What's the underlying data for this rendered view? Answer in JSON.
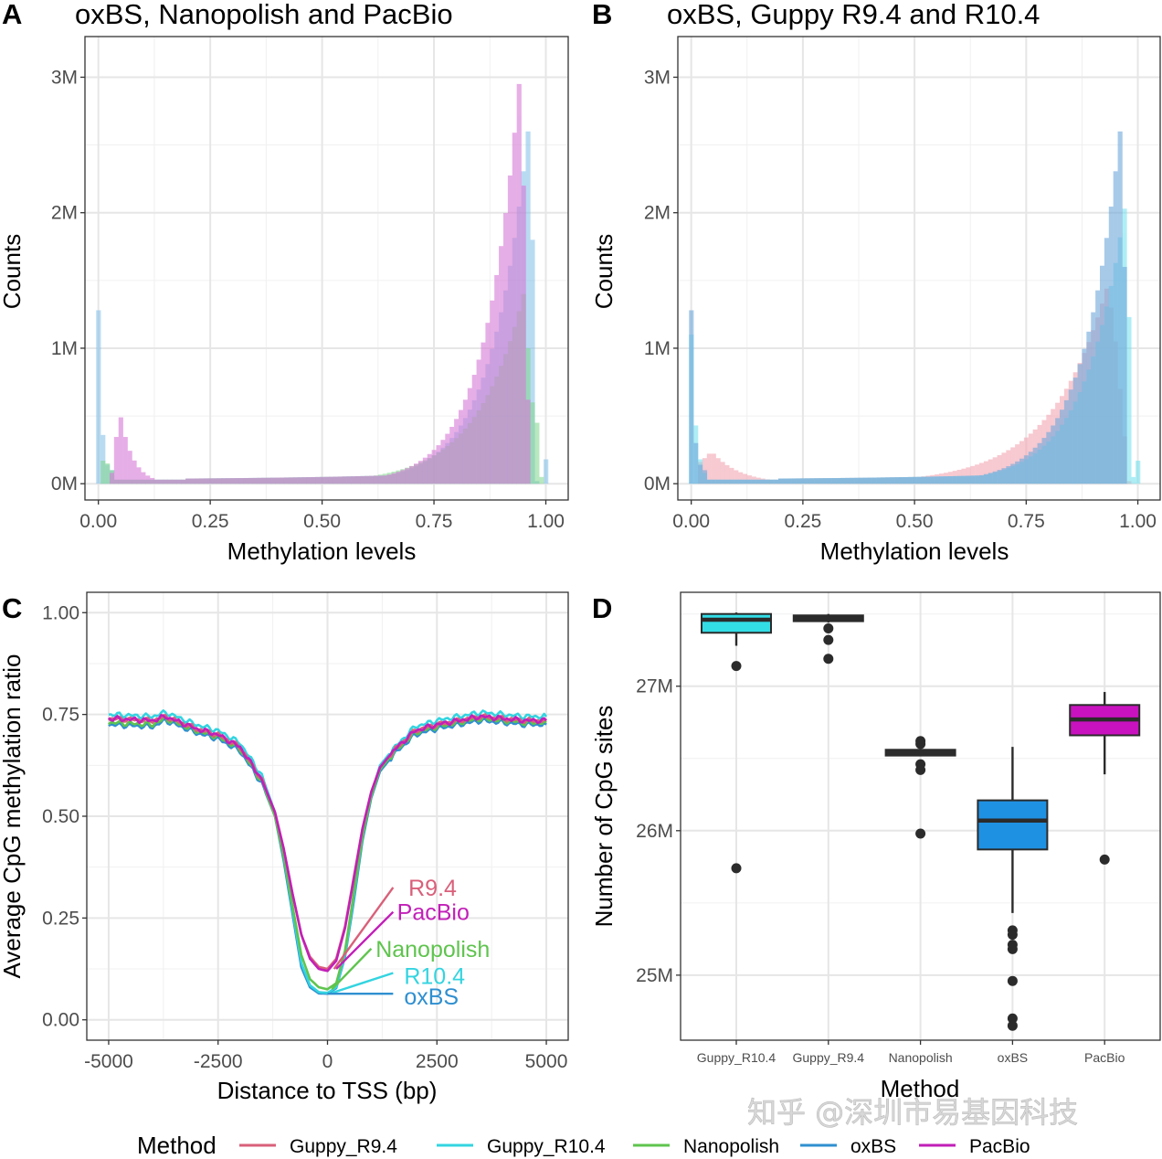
{
  "figure": {
    "watermark": "知乎 @深圳市易基因科技",
    "legend": {
      "title": "Method",
      "items": [
        {
          "label": "Guppy_R9.4",
          "color": "#d9607a"
        },
        {
          "label": "Guppy_R10.4",
          "color": "#33d4e0"
        },
        {
          "label": "Nanopolish",
          "color": "#5fc44e"
        },
        {
          "label": "oxBS",
          "color": "#2f8fd0"
        },
        {
          "label": "PacBio",
          "color": "#c21fb8"
        }
      ]
    }
  },
  "chart_data": [
    {
      "id": "A",
      "letter": "A",
      "type": "bar",
      "subtype": "overlaid-histogram",
      "title": "oxBS, Nanopolish and PacBio",
      "xlabel": "Methylation levels",
      "ylabel": "Counts",
      "xlim": [
        -0.03,
        1.05
      ],
      "ylim": [
        -0.12,
        3.3
      ],
      "y_unit": "M",
      "xticks": [
        0,
        0.25,
        0.5,
        0.75,
        1.0
      ],
      "xtick_labels": [
        "0.00",
        "0.25",
        "0.50",
        "0.75",
        "1.00"
      ],
      "yticks": [
        0,
        1,
        2,
        3
      ],
      "ytick_labels": [
        "0M",
        "1M",
        "2M",
        "3M"
      ],
      "grid": true,
      "bin_width": 0.01,
      "series": [
        {
          "name": "oxBS",
          "color": "#7fbfe8",
          "opacity": 0.55,
          "peaks": [
            {
              "x": 0.0,
              "y": 1.28
            },
            {
              "x": 0.01,
              "y": 0.36
            },
            {
              "x": 0.96,
              "y": 2.6
            },
            {
              "x": 0.97,
              "y": 1.8
            },
            {
              "x": 1.0,
              "y": 0.18
            }
          ]
        },
        {
          "name": "Nanopolish",
          "color": "#7fd68c",
          "opacity": 0.55,
          "peaks": [
            {
              "x": 0.01,
              "y": 0.17
            },
            {
              "x": 0.95,
              "y": 1.35
            },
            {
              "x": 0.96,
              "y": 1.0
            },
            {
              "x": 0.98,
              "y": 0.45
            }
          ]
        },
        {
          "name": "PacBio",
          "color": "#d77ad6",
          "opacity": 0.6,
          "peaks": [
            {
              "x": 0.05,
              "y": 0.49
            },
            {
              "x": 0.94,
              "y": 2.95
            },
            {
              "x": 0.96,
              "y": 0.62
            }
          ]
        }
      ]
    },
    {
      "id": "B",
      "letter": "B",
      "type": "bar",
      "subtype": "overlaid-histogram",
      "title": "oxBS, Guppy R9.4 and R10.4",
      "xlabel": "Methylation levels",
      "ylabel": "Counts",
      "xlim": [
        -0.03,
        1.05
      ],
      "ylim": [
        -0.12,
        3.3
      ],
      "y_unit": "M",
      "xticks": [
        0,
        0.25,
        0.5,
        0.75,
        1.0
      ],
      "xtick_labels": [
        "0.00",
        "0.25",
        "0.50",
        "0.75",
        "1.00"
      ],
      "yticks": [
        0,
        1,
        2,
        3
      ],
      "ytick_labels": [
        "0M",
        "1M",
        "2M",
        "3M"
      ],
      "grid": true,
      "bin_width": 0.01,
      "series": [
        {
          "name": "Guppy_R9.4",
          "color": "#f2a6b2",
          "opacity": 0.6,
          "peaks": [
            {
              "x": 0.04,
              "y": 0.24
            },
            {
              "x": 0.93,
              "y": 1.44
            }
          ]
        },
        {
          "name": "Guppy_R10.4",
          "color": "#6fe0ee",
          "opacity": 0.55,
          "peaks": [
            {
              "x": 0.0,
              "y": 1.1
            },
            {
              "x": 0.01,
              "y": 0.43
            },
            {
              "x": 0.97,
              "y": 2.03
            },
            {
              "x": 0.98,
              "y": 1.23
            },
            {
              "x": 1.0,
              "y": 0.17
            }
          ]
        },
        {
          "name": "oxBS",
          "color": "#6fa8dc",
          "opacity": 0.6,
          "peaks": [
            {
              "x": 0.0,
              "y": 1.28
            },
            {
              "x": 0.96,
              "y": 2.6
            },
            {
              "x": 0.97,
              "y": 1.6
            }
          ]
        }
      ]
    },
    {
      "id": "C",
      "letter": "C",
      "type": "line",
      "title": "",
      "xlabel": "Distance to TSS (bp)",
      "ylabel": "Average CpG methylation ratio",
      "xlim": [
        -5500,
        5500
      ],
      "ylim": [
        -0.05,
        1.05
      ],
      "xticks": [
        -5000,
        -2500,
        0,
        2500,
        5000
      ],
      "xtick_labels": [
        "-5000",
        "-2500",
        "0",
        "2500",
        "5000"
      ],
      "yticks": [
        0,
        0.25,
        0.5,
        0.75,
        1.0
      ],
      "ytick_labels": [
        "0.00",
        "0.25",
        "0.50",
        "0.75",
        "1.00"
      ],
      "grid": true,
      "x": [
        -5000,
        -4000,
        -3700,
        -3000,
        -2500,
        -2000,
        -1500,
        -1200,
        -1000,
        -800,
        -600,
        -400,
        -200,
        0,
        200,
        400,
        600,
        800,
        1000,
        1200,
        1500,
        2000,
        2500,
        3000,
        3500,
        4000,
        4500,
        5000
      ],
      "series": [
        {
          "name": "Guppy_R9.4",
          "label": "R9.4",
          "color": "#d9607a",
          "values": [
            0.74,
            0.735,
            0.745,
            0.715,
            0.7,
            0.67,
            0.59,
            0.51,
            0.42,
            0.31,
            0.21,
            0.155,
            0.13,
            0.125,
            0.15,
            0.23,
            0.35,
            0.47,
            0.56,
            0.62,
            0.66,
            0.71,
            0.725,
            0.735,
            0.745,
            0.74,
            0.735,
            0.735
          ]
        },
        {
          "name": "PacBio",
          "label": "PacBio",
          "color": "#c21fb8",
          "values": [
            0.74,
            0.735,
            0.745,
            0.715,
            0.7,
            0.67,
            0.59,
            0.51,
            0.42,
            0.31,
            0.21,
            0.15,
            0.125,
            0.12,
            0.145,
            0.225,
            0.345,
            0.47,
            0.56,
            0.62,
            0.66,
            0.71,
            0.725,
            0.735,
            0.745,
            0.74,
            0.735,
            0.735
          ]
        },
        {
          "name": "Nanopolish",
          "label": "Nanopolish",
          "color": "#5fc44e",
          "values": [
            0.73,
            0.725,
            0.74,
            0.71,
            0.695,
            0.665,
            0.585,
            0.5,
            0.4,
            0.28,
            0.16,
            0.1,
            0.08,
            0.075,
            0.09,
            0.17,
            0.31,
            0.45,
            0.55,
            0.615,
            0.655,
            0.705,
            0.72,
            0.73,
            0.74,
            0.735,
            0.73,
            0.73
          ]
        },
        {
          "name": "Guppy_R10.4",
          "label": "R10.4",
          "color": "#33d4e0",
          "values": [
            0.75,
            0.745,
            0.755,
            0.725,
            0.71,
            0.68,
            0.6,
            0.51,
            0.4,
            0.27,
            0.14,
            0.085,
            0.068,
            0.066,
            0.08,
            0.16,
            0.3,
            0.45,
            0.555,
            0.625,
            0.665,
            0.72,
            0.735,
            0.745,
            0.755,
            0.75,
            0.745,
            0.745
          ]
        },
        {
          "name": "oxBS",
          "label": "oxBS",
          "color": "#2f8fd0",
          "values": [
            0.725,
            0.72,
            0.735,
            0.705,
            0.69,
            0.66,
            0.58,
            0.5,
            0.39,
            0.26,
            0.13,
            0.08,
            0.065,
            0.064,
            0.078,
            0.155,
            0.29,
            0.44,
            0.545,
            0.61,
            0.65,
            0.7,
            0.715,
            0.725,
            0.735,
            0.73,
            0.725,
            0.725
          ]
        }
      ],
      "annotations": [
        {
          "text": "R9.4",
          "series": "Guppy_R9.4"
        },
        {
          "text": "PacBio",
          "series": "PacBio"
        },
        {
          "text": "Nanopolish",
          "series": "Nanopolish"
        },
        {
          "text": "R10.4",
          "series": "Guppy_R10.4"
        },
        {
          "text": "oxBS",
          "series": "oxBS"
        }
      ]
    },
    {
      "id": "D",
      "letter": "D",
      "type": "box",
      "title": "",
      "xlabel": "Method",
      "ylabel": "Number of CpG sites",
      "ylim": [
        24.55,
        27.65
      ],
      "y_unit": "M",
      "yticks": [
        25,
        26,
        27
      ],
      "ytick_labels": [
        "25M",
        "26M",
        "27M"
      ],
      "grid": true,
      "categories": [
        "Guppy_R10.4",
        "Guppy_R9.4",
        "Nanopolish",
        "oxBS",
        "PacBio"
      ],
      "boxes": [
        {
          "name": "Guppy_R10.4",
          "fill": "#33dde6",
          "whisker_low": 27.28,
          "q1": 27.37,
          "median": 27.46,
          "q3": 27.5,
          "whisker_high": 27.51,
          "outliers": [
            27.14,
            25.74
          ]
        },
        {
          "name": "Guppy_R9.4",
          "fill": "#2b2b2b",
          "whisker_low": 27.44,
          "q1": 27.45,
          "median": 27.47,
          "q3": 27.49,
          "whisker_high": 27.5,
          "outliers": [
            27.4,
            27.32,
            27.19
          ]
        },
        {
          "name": "Nanopolish",
          "fill": "#2b2b2b",
          "whisker_low": 26.52,
          "q1": 26.52,
          "median": 26.54,
          "q3": 26.56,
          "whisker_high": 26.56,
          "outliers": [
            26.62,
            26.6,
            26.46,
            26.42,
            25.98
          ]
        },
        {
          "name": "oxBS",
          "fill": "#1f91e3",
          "whisker_low": 25.43,
          "q1": 25.87,
          "median": 26.07,
          "q3": 26.21,
          "whisker_high": 26.58,
          "outliers": [
            25.31,
            25.28,
            25.21,
            25.18,
            24.96,
            24.7,
            24.65
          ]
        },
        {
          "name": "PacBio",
          "fill": "#c912bf",
          "whisker_low": 26.39,
          "q1": 26.66,
          "median": 26.77,
          "q3": 26.87,
          "whisker_high": 26.96,
          "outliers": [
            25.8
          ]
        }
      ]
    }
  ]
}
